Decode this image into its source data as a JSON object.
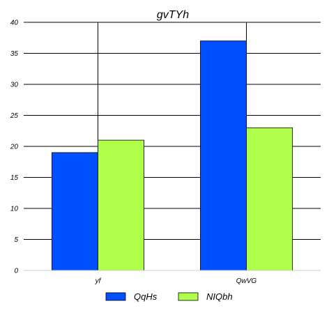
{
  "chart_data": {
    "type": "bar",
    "title": "gvTYh",
    "xlabel": "",
    "ylabel": "",
    "categories": [
      "yf",
      "QwVG"
    ],
    "series": [
      {
        "name": "QqHs",
        "values": [
          19,
          37
        ],
        "color": "#0050ff"
      },
      {
        "name": "NIQbh",
        "values": [
          21,
          23
        ],
        "color": "#b0ff4a"
      }
    ],
    "ylim": [
      0,
      40
    ],
    "yticks": [
      0,
      5,
      10,
      15,
      20,
      25,
      30,
      35,
      40
    ],
    "grid": true,
    "legend_position": "bottom-center"
  }
}
